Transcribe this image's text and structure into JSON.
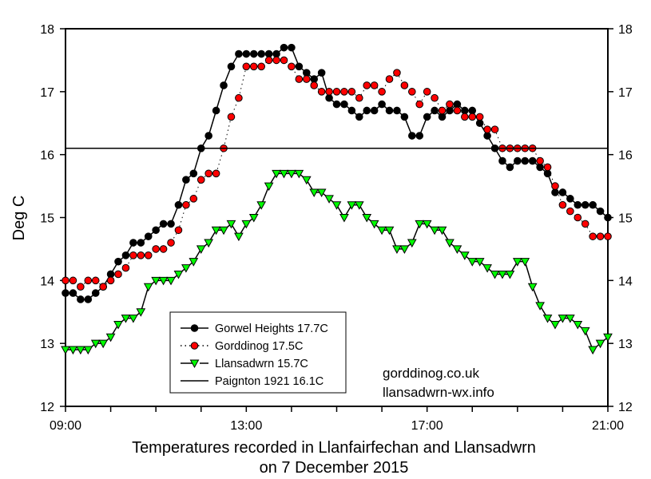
{
  "chart_data": {
    "type": "line",
    "title": "Temperatures recorded in Llanfairfechan and Llansadwrn",
    "subtitle": "on 7 December 2015",
    "xlabel": "",
    "ylabel": "Deg C",
    "ylim": [
      12,
      18
    ],
    "xlim": [
      "09:00",
      "21:00"
    ],
    "x_interval_minutes": 10,
    "x_start": "09:00",
    "x_ticks": [
      "09:00",
      "13:00",
      "17:00",
      "21:00"
    ],
    "y_ticks": [
      12,
      13,
      14,
      15,
      16,
      17,
      18
    ],
    "grid": false,
    "legend_position": "bottom-left",
    "annotations": [
      "gorddinog.co.uk",
      "llansadwrn-wx.info"
    ],
    "series": [
      {
        "name": "Gorwel Heights 17.7C",
        "color": "#000000",
        "marker": "circle",
        "line": "solid",
        "values": [
          13.8,
          13.8,
          13.7,
          13.7,
          13.8,
          13.9,
          14.1,
          14.3,
          14.4,
          14.6,
          14.6,
          14.7,
          14.8,
          14.9,
          14.9,
          15.2,
          15.6,
          15.7,
          16.1,
          16.3,
          16.7,
          17.1,
          17.4,
          17.6,
          17.6,
          17.6,
          17.6,
          17.6,
          17.6,
          17.7,
          17.7,
          17.4,
          17.3,
          17.2,
          17.3,
          16.9,
          16.8,
          16.8,
          16.7,
          16.6,
          16.7,
          16.7,
          16.8,
          16.7,
          16.7,
          16.6,
          16.3,
          16.3,
          16.6,
          16.7,
          16.6,
          16.7,
          16.8,
          16.7,
          16.7,
          16.5,
          16.3,
          16.1,
          15.9,
          15.8,
          15.9,
          15.9,
          15.9,
          15.8,
          15.7,
          15.4,
          15.4,
          15.3,
          15.2,
          15.2,
          15.2,
          15.1,
          15.0
        ]
      },
      {
        "name": "Gorddinog 17.5C",
        "color": "#ff0000",
        "marker": "circle",
        "line": "dotted",
        "values": [
          14.0,
          14.0,
          13.9,
          14.0,
          14.0,
          13.9,
          14.0,
          14.1,
          14.2,
          14.4,
          14.4,
          14.4,
          14.5,
          14.5,
          14.6,
          14.8,
          15.2,
          15.3,
          15.6,
          15.7,
          15.7,
          16.1,
          16.6,
          16.9,
          17.4,
          17.4,
          17.4,
          17.5,
          17.5,
          17.5,
          17.4,
          17.2,
          17.2,
          17.1,
          17.0,
          17.0,
          17.0,
          17.0,
          17.0,
          16.9,
          17.1,
          17.1,
          17.0,
          17.2,
          17.3,
          17.1,
          17.0,
          16.8,
          17.0,
          16.9,
          16.7,
          16.8,
          16.7,
          16.6,
          16.6,
          16.6,
          16.4,
          16.4,
          16.1,
          16.1,
          16.1,
          16.1,
          16.1,
          15.9,
          15.8,
          15.5,
          15.2,
          15.1,
          15.0,
          14.9,
          14.7,
          14.7,
          14.7
        ]
      },
      {
        "name": "Llansadwrn 15.7C",
        "color": "#00ff00",
        "marker": "triangle-down",
        "line": "solid",
        "values": [
          12.9,
          12.9,
          12.9,
          12.9,
          13.0,
          13.0,
          13.1,
          13.3,
          13.4,
          13.4,
          13.5,
          13.9,
          14.0,
          14.0,
          14.0,
          14.1,
          14.2,
          14.3,
          14.5,
          14.6,
          14.8,
          14.8,
          14.9,
          14.7,
          14.9,
          15.0,
          15.2,
          15.5,
          15.7,
          15.7,
          15.7,
          15.7,
          15.6,
          15.4,
          15.4,
          15.3,
          15.2,
          15.0,
          15.2,
          15.2,
          15.0,
          14.9,
          14.8,
          14.8,
          14.5,
          14.5,
          14.6,
          14.9,
          14.9,
          14.8,
          14.8,
          14.6,
          14.5,
          14.4,
          14.3,
          14.3,
          14.2,
          14.1,
          14.1,
          14.1,
          14.3,
          14.3,
          13.9,
          13.6,
          13.4,
          13.3,
          13.4,
          13.4,
          13.3,
          13.2,
          12.9,
          13.0,
          13.1
        ]
      },
      {
        "name": "Paignton 1921 16.1C",
        "color": "#000000",
        "marker": "none",
        "line": "solid",
        "values": [
          16.1
        ]
      }
    ]
  }
}
